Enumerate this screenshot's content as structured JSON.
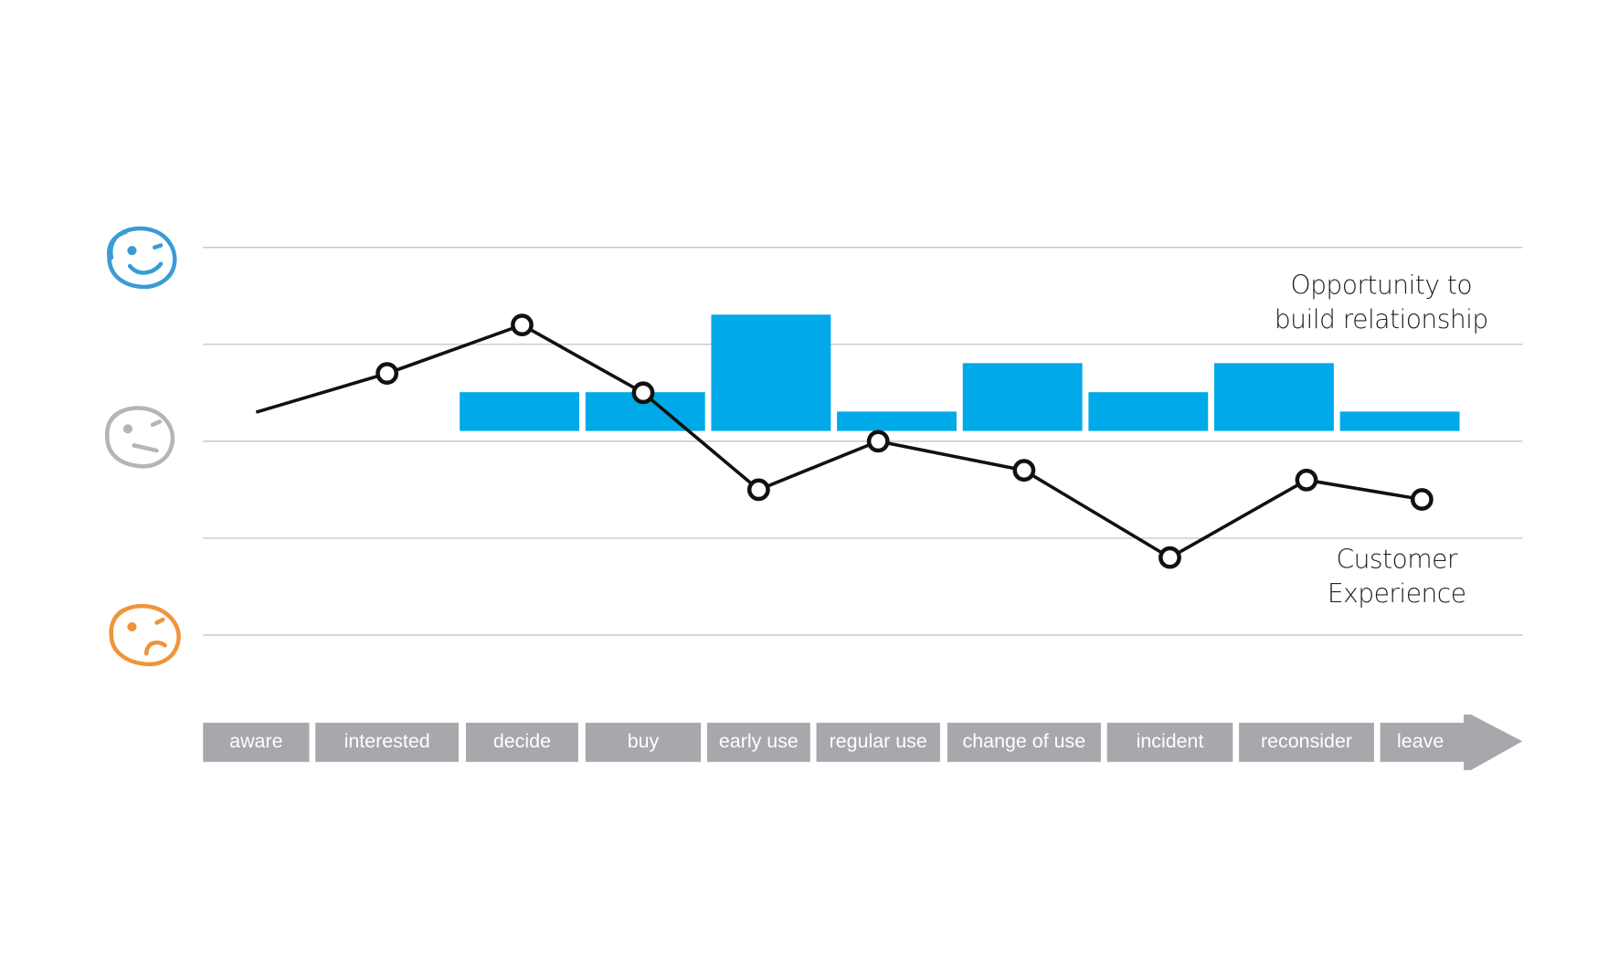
{
  "chart_data": {
    "type": "combo",
    "categories": [
      "aware",
      "interested",
      "decide",
      "buy",
      "early use",
      "regular use",
      "change of use",
      "incident",
      "reconsider",
      "leave"
    ],
    "series": [
      {
        "name": "Opportunity to build relationship",
        "type": "bar",
        "color": "#00a9e8",
        "values": [
          null,
          null,
          0.4,
          0.4,
          1.2,
          0.2,
          0.7,
          0.4,
          0.7,
          0.2
        ]
      },
      {
        "name": "Customer Experience",
        "type": "line",
        "color": "#111111",
        "values": [
          0.3,
          0.7,
          1.2,
          0.5,
          -0.5,
          0,
          -0.3,
          -1.2,
          -0.4,
          -0.6
        ]
      }
    ],
    "ylim": [
      -2,
      2
    ],
    "gridlines": [
      -2,
      -1,
      0,
      1,
      2
    ],
    "grid": true
  }
}
